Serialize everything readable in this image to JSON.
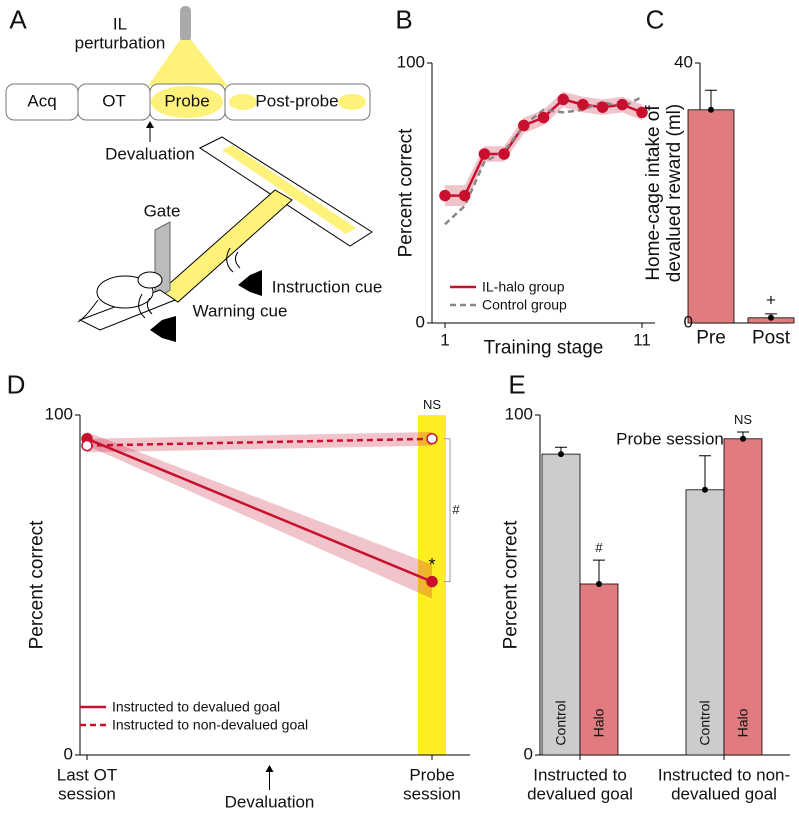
{
  "diagram": {
    "label": "A",
    "perturbation": "IL perturbation",
    "phases": [
      "Acq",
      "OT",
      "Probe",
      "Post-probe"
    ],
    "devaluation": "Devaluation",
    "gate": "Gate",
    "instruction_cue": "Instruction cue",
    "warning_cue": "Warning cue"
  },
  "chart_data": [
    {
      "panel": "B",
      "type": "line",
      "x": [
        1,
        2,
        3,
        4,
        5,
        6,
        7,
        8,
        9,
        10,
        11
      ],
      "xlim": [
        1,
        11
      ],
      "xticks": [
        1,
        11
      ],
      "ylim": [
        0,
        100
      ],
      "yticks": [
        0,
        100
      ],
      "xlabel": "Training stage",
      "ylabel": "Percent correct",
      "legend": "lower-right",
      "series": [
        {
          "name": "IL-halo group",
          "color": "#c8102e",
          "style": "solid",
          "marker": "filled",
          "values": [
            49,
            49,
            65,
            65,
            76,
            79,
            86,
            84,
            83,
            84,
            81
          ],
          "errors": [
            4,
            4,
            3,
            3,
            3,
            3,
            3,
            3,
            3,
            3,
            3
          ]
        },
        {
          "name": "Control group",
          "color": "#888888",
          "style": "dashed",
          "values": [
            38,
            45,
            62,
            66,
            76,
            82,
            81,
            82,
            85,
            83,
            87
          ]
        }
      ]
    },
    {
      "panel": "C",
      "type": "bar",
      "categories": [
        "Pre",
        "Post"
      ],
      "values": [
        32.8,
        0.8
      ],
      "errors": [
        3,
        0.6
      ],
      "color": "#e07b80",
      "ylim": [
        0,
        40
      ],
      "yticks": [
        0,
        40
      ],
      "ylabel": "Home-cage intake of devalued reward (ml)",
      "annotations": [
        "+"
      ]
    },
    {
      "panel": "D",
      "type": "line",
      "categories": [
        "Last OT session",
        "Probe session"
      ],
      "ylim": [
        0,
        100
      ],
      "yticks": [
        0,
        100
      ],
      "ylabel": "Percent correct",
      "legend": "lower-left",
      "highlight_color": "#ffee22",
      "xnote": "Devaluation",
      "series": [
        {
          "name": "Instructed to devalued goal",
          "color": "#c8102e",
          "style": "solid",
          "marker": "filled",
          "values": [
            93,
            51
          ],
          "errors": [
            2,
            5
          ]
        },
        {
          "name": "Instructed to non-devalued goal",
          "color": "#c8102e",
          "style": "dashed",
          "marker": "open",
          "values": [
            91,
            93
          ],
          "errors": [
            2,
            2
          ]
        }
      ],
      "annotations": [
        "NS",
        "#",
        "*"
      ]
    },
    {
      "panel": "E",
      "type": "grouped-bar",
      "title": "Probe session",
      "categories": [
        "Instructed to devalued goal",
        "Instructed to non-devalued goal"
      ],
      "ylim": [
        0,
        100
      ],
      "yticks": [
        0,
        100
      ],
      "ylabel": "Percent correct",
      "series": [
        {
          "name": "Control",
          "color": "#cccccc",
          "values": [
            88.5,
            78
          ],
          "errors": [
            2,
            10
          ]
        },
        {
          "name": "Halo",
          "color": "#e07b80",
          "values": [
            50.3,
            93
          ],
          "errors": [
            7,
            2
          ]
        }
      ],
      "annotations": [
        "#",
        "NS"
      ]
    }
  ]
}
